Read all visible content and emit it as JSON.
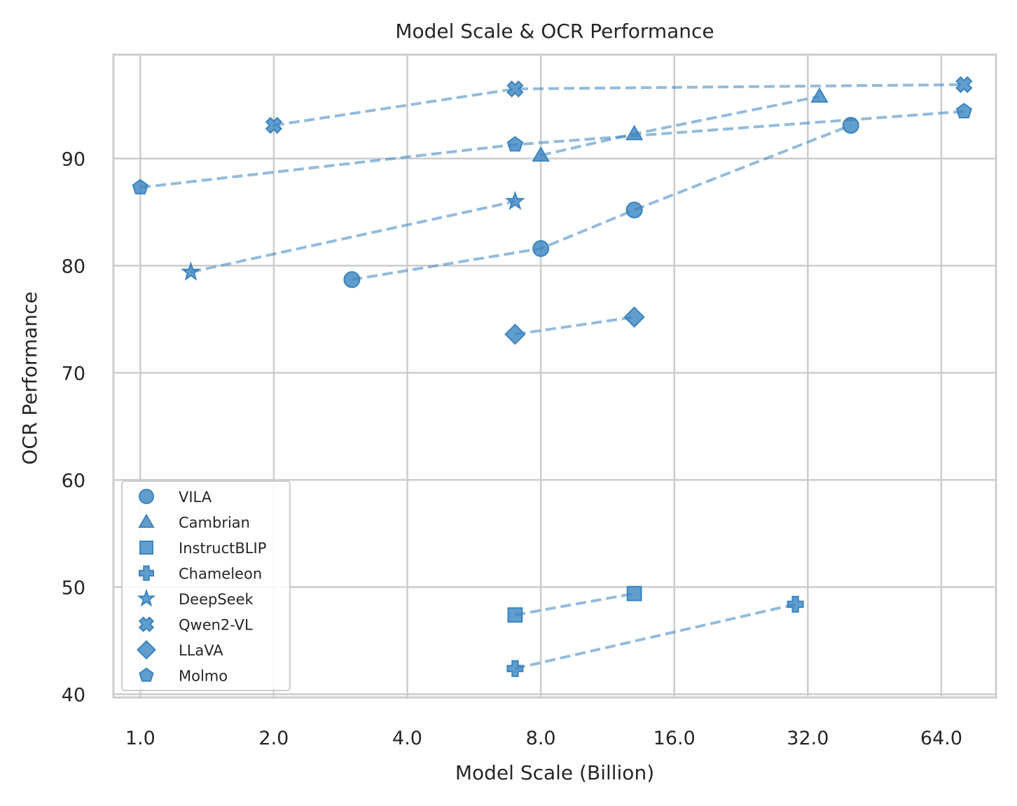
{
  "chart_data": {
    "type": "scatter",
    "title": "Model Scale & OCR Performance",
    "xlabel": "Model Scale (Billion)",
    "ylabel": "OCR Performance",
    "xscale": "log2",
    "xlim": [
      0.87,
      85
    ],
    "ylim": [
      39.7,
      99.7
    ],
    "xticks": [
      1,
      2,
      4,
      8,
      16,
      32,
      64
    ],
    "xtick_labels": [
      "1.0",
      "2.0",
      "4.0",
      "8.0",
      "16.0",
      "32.0",
      "64.0"
    ],
    "yticks": [
      40,
      50,
      60,
      70,
      80,
      90
    ],
    "ytick_labels": [
      "40",
      "50",
      "60",
      "70",
      "80",
      "90"
    ],
    "grid": true,
    "legend_position": "lower-left",
    "color": "#3a84c0",
    "series": [
      {
        "name": "VILA",
        "marker": "circle",
        "x": [
          3,
          8,
          13,
          40
        ],
        "y": [
          78.7,
          81.6,
          85.2,
          93.1
        ]
      },
      {
        "name": "Cambrian",
        "marker": "triangle",
        "x": [
          8,
          13,
          34
        ],
        "y": [
          90.3,
          92.3,
          95.8
        ]
      },
      {
        "name": "InstructBLIP",
        "marker": "square",
        "x": [
          7,
          13
        ],
        "y": [
          47.4,
          49.4
        ]
      },
      {
        "name": "Chameleon",
        "marker": "plus",
        "x": [
          7,
          30
        ],
        "y": [
          42.4,
          48.4
        ]
      },
      {
        "name": "DeepSeek",
        "marker": "star",
        "x": [
          1.3,
          7
        ],
        "y": [
          79.4,
          86.0
        ]
      },
      {
        "name": "Qwen2-VL",
        "marker": "x",
        "x": [
          2,
          7,
          72
        ],
        "y": [
          93.1,
          96.5,
          96.9
        ]
      },
      {
        "name": "LLaVA",
        "marker": "diamond",
        "x": [
          7,
          13
        ],
        "y": [
          73.6,
          75.2
        ]
      },
      {
        "name": "Molmo",
        "marker": "pentagon",
        "x": [
          1,
          7,
          72
        ],
        "y": [
          87.3,
          91.3,
          94.4
        ]
      }
    ]
  }
}
